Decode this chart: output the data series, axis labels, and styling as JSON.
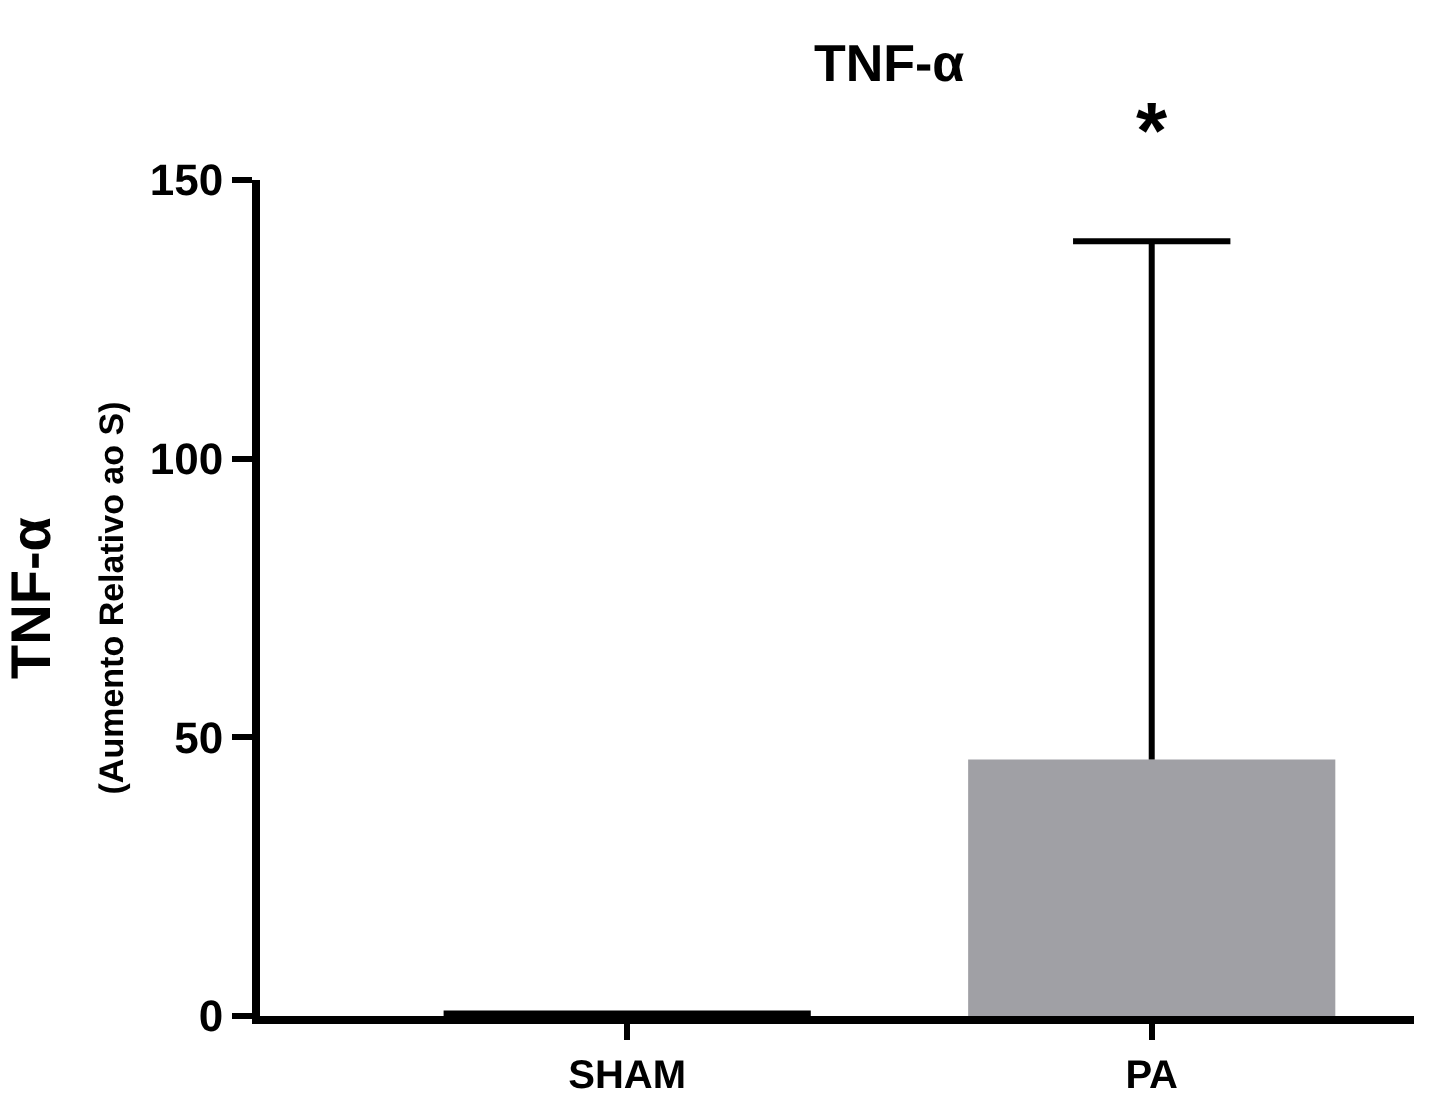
{
  "chart_data": {
    "type": "bar",
    "title": "TNF-α",
    "ylabel": "TNF-α\n(Aumento Relativo ao S)",
    "categories": [
      "SHAM",
      "PA"
    ],
    "values": [
      1,
      46
    ],
    "colors": [
      "#000000",
      "#a0a0a5"
    ],
    "errors": [
      null,
      93
    ],
    "ylim": [
      0,
      150
    ],
    "yticks": [
      0,
      50,
      100,
      150
    ],
    "annotations": [
      "*"
    ]
  }
}
